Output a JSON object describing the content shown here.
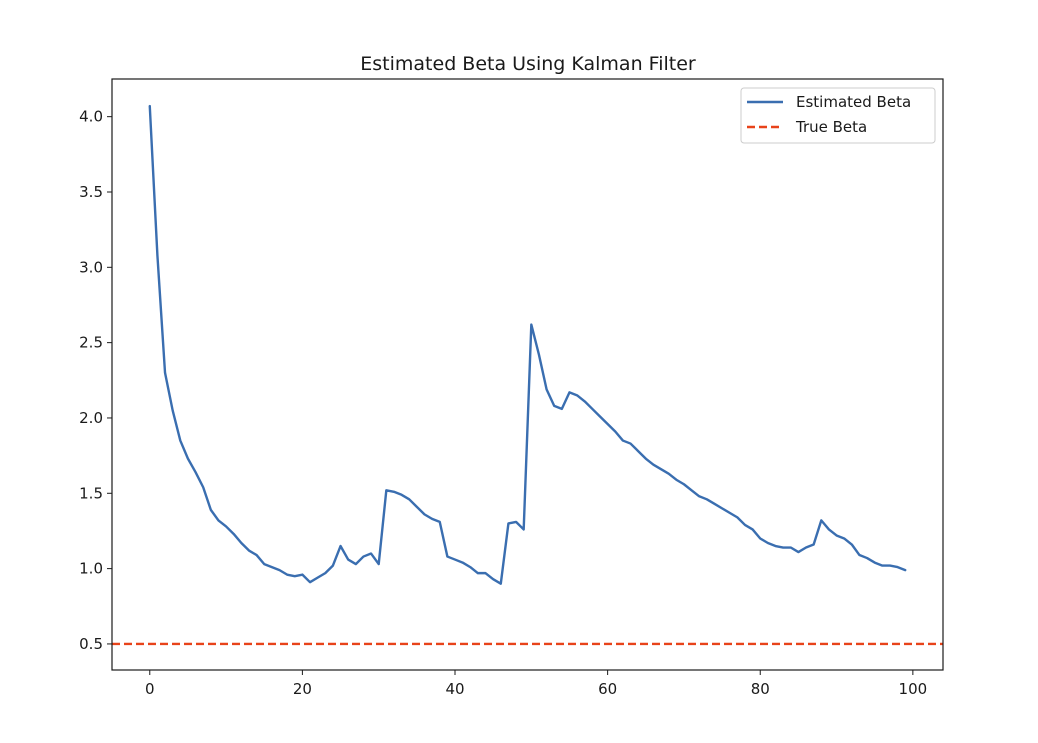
{
  "figure": {
    "title": "Estimated Beta Using Kalman Filter",
    "legend": [
      {
        "label": "Estimated Beta",
        "style": "solid",
        "color": "#3a6eb0"
      },
      {
        "label": "True Beta",
        "style": "dashed",
        "color": "#e8431a"
      }
    ]
  },
  "chart_data": {
    "type": "line",
    "title": "Estimated Beta Using Kalman Filter",
    "xlabel": "",
    "ylabel": "",
    "xlim": [
      -4.95,
      103.95
    ],
    "ylim": [
      0.327,
      4.25
    ],
    "xticks": [
      0,
      20,
      40,
      60,
      80,
      100
    ],
    "xtick_labels": [
      "0",
      "20",
      "40",
      "60",
      "80",
      "100"
    ],
    "yticks": [
      0.5,
      1.0,
      1.5,
      2.0,
      2.5,
      3.0,
      3.5,
      4.0
    ],
    "ytick_labels": [
      "0.5",
      "1.0",
      "1.5",
      "2.0",
      "2.5",
      "3.0",
      "3.5",
      "4.0"
    ],
    "grid": false,
    "legend_position": "upper right",
    "series": [
      {
        "name": "Estimated Beta",
        "style": "solid",
        "color": "#3a6eb0",
        "x": [
          0,
          1,
          2,
          3,
          4,
          5,
          6,
          7,
          8,
          9,
          10,
          11,
          12,
          13,
          14,
          15,
          16,
          17,
          18,
          19,
          20,
          21,
          22,
          23,
          24,
          25,
          26,
          27,
          28,
          29,
          30,
          31,
          32,
          33,
          34,
          35,
          36,
          37,
          38,
          39,
          40,
          41,
          42,
          43,
          44,
          45,
          46,
          47,
          48,
          49,
          50,
          51,
          52,
          53,
          54,
          55,
          56,
          57,
          58,
          59,
          60,
          61,
          62,
          63,
          64,
          65,
          66,
          67,
          68,
          69,
          70,
          71,
          72,
          73,
          74,
          75,
          76,
          77,
          78,
          79,
          80,
          81,
          82,
          83,
          84,
          85,
          86,
          87,
          88,
          89,
          90,
          91,
          92,
          93,
          94,
          95,
          96,
          97,
          98,
          99
        ],
        "values": [
          4.07,
          3.08,
          2.3,
          2.05,
          1.85,
          1.73,
          1.64,
          1.54,
          1.39,
          1.32,
          1.28,
          1.23,
          1.17,
          1.12,
          1.09,
          1.03,
          1.01,
          0.99,
          0.96,
          0.95,
          0.96,
          0.91,
          0.94,
          0.97,
          1.02,
          1.15,
          1.06,
          1.03,
          1.08,
          1.1,
          1.03,
          1.52,
          1.51,
          1.49,
          1.46,
          1.41,
          1.36,
          1.33,
          1.31,
          1.08,
          1.06,
          1.04,
          1.01,
          0.97,
          0.97,
          0.93,
          0.9,
          1.3,
          1.31,
          1.26,
          2.62,
          2.42,
          2.19,
          2.08,
          2.06,
          2.17,
          2.15,
          2.11,
          2.06,
          2.01,
          1.96,
          1.91,
          1.85,
          1.83,
          1.78,
          1.73,
          1.69,
          1.66,
          1.63,
          1.59,
          1.56,
          1.52,
          1.48,
          1.46,
          1.43,
          1.4,
          1.37,
          1.34,
          1.29,
          1.26,
          1.2,
          1.17,
          1.15,
          1.14,
          1.14,
          1.11,
          1.14,
          1.16,
          1.32,
          1.26,
          1.22,
          1.2,
          1.16,
          1.09,
          1.07,
          1.04,
          1.02,
          1.02,
          1.01,
          0.99
        ]
      },
      {
        "name": "True Beta",
        "style": "dashed",
        "color": "#e8431a",
        "type": "hline",
        "value": 0.5
      }
    ]
  }
}
